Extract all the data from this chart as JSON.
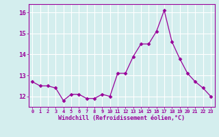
{
  "x": [
    0,
    1,
    2,
    3,
    4,
    5,
    6,
    7,
    8,
    9,
    10,
    11,
    12,
    13,
    14,
    15,
    16,
    17,
    18,
    19,
    20,
    21,
    22,
    23
  ],
  "y": [
    12.7,
    12.5,
    12.5,
    12.4,
    11.8,
    12.1,
    12.1,
    11.9,
    11.9,
    12.1,
    12.0,
    13.1,
    13.1,
    13.9,
    14.5,
    14.5,
    15.1,
    16.1,
    14.6,
    13.8,
    13.1,
    12.7,
    12.4,
    12.0
  ],
  "line_color": "#990099",
  "marker": "D",
  "marker_size": 2.5,
  "xlabel": "Windchill (Refroidissement éolien,°C)",
  "xlabel_color": "#990099",
  "ylim": [
    11.5,
    16.4
  ],
  "xlim": [
    -0.5,
    23.5
  ],
  "yticks": [
    12,
    13,
    14,
    15,
    16
  ],
  "xtick_labels": [
    "0",
    "1",
    "2",
    "3",
    "4",
    "5",
    "6",
    "7",
    "8",
    "9",
    "10",
    "11",
    "12",
    "13",
    "14",
    "15",
    "16",
    "17",
    "18",
    "19",
    "20",
    "21",
    "22",
    "23"
  ],
  "background_color": "#d4eeee",
  "grid_color": "#c0e0e0",
  "tick_color": "#990099",
  "figsize": [
    3.2,
    2.0
  ],
  "dpi": 100
}
